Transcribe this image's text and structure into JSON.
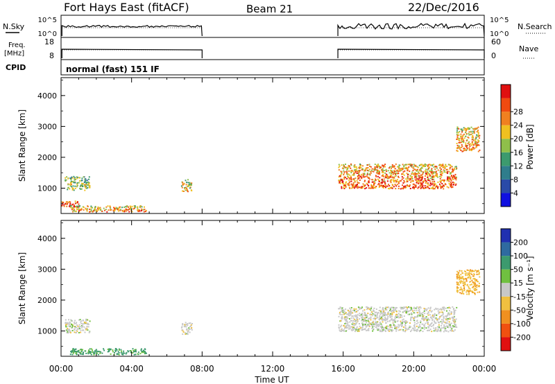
{
  "header": {
    "station": "Fort Hays East (fitACF)",
    "beam": "Beam 21",
    "date": "22/Dec/2016"
  },
  "strips": {
    "nsky": {
      "label": "N.Sky",
      "ticks": [
        "10^5",
        "10^0"
      ]
    },
    "nsearch": {
      "label": "N.Search",
      "ticks": [
        "10^5",
        "10^0"
      ]
    },
    "freq": {
      "label_line1": "Freq.",
      "label_line2": "[MHz]",
      "ticks": [
        "18",
        "8"
      ]
    },
    "nave": {
      "label": "Nave",
      "ticks": [
        "60",
        "0"
      ]
    },
    "cpid": {
      "label": "CPID",
      "value": "normal (fast) 151 IF"
    }
  },
  "colors": {
    "power_scale": [
      "#1010e0",
      "#2a4aa8",
      "#2f7d8c",
      "#3c9a6e",
      "#8fbf4a",
      "#f0c020",
      "#f08020",
      "#f04a10",
      "#e01010"
    ],
    "velocity_scale": [
      "#e01010",
      "#f05010",
      "#f09020",
      "#f0c040",
      "#c8c8c8",
      "#70c040",
      "#3c9a6e",
      "#2f6aa0",
      "#2030b0"
    ]
  },
  "chart_data": [
    {
      "type": "heatmap",
      "panel": "power",
      "xlabel": "",
      "ylabel": "Slant Range [km]",
      "ylim": [
        180,
        4580
      ],
      "y_ticks": [
        "1000",
        "2000",
        "3000",
        "4000"
      ],
      "colorbar": {
        "label": "Power [dB]",
        "ticks": [
          "4",
          "8",
          "12",
          "16",
          "20",
          "24",
          "28"
        ]
      },
      "regions": [
        {
          "t": [
            0.2,
            1.6
          ],
          "range": [
            950,
            1400
          ],
          "value": 12
        },
        {
          "t": [
            0.0,
            1.0
          ],
          "range": [
            400,
            600
          ],
          "value": 24
        },
        {
          "t": [
            0.5,
            4.8
          ],
          "range": [
            250,
            450
          ],
          "value": 18
        },
        {
          "t": [
            6.8,
            7.4
          ],
          "range": [
            900,
            1300
          ],
          "value": 16
        },
        {
          "t": [
            15.7,
            22.4
          ],
          "range": [
            1000,
            1800
          ],
          "value": 20
        },
        {
          "t": [
            22.4,
            23.7
          ],
          "range": [
            2200,
            3000
          ],
          "value": 18
        }
      ]
    },
    {
      "type": "heatmap",
      "panel": "velocity",
      "xlabel": "Time UT",
      "ylabel": "Slant Range [km]",
      "ylim": [
        180,
        4580
      ],
      "y_ticks": [
        "1000",
        "2000",
        "3000",
        "4000"
      ],
      "x_ticks": [
        "00:00",
        "04:00",
        "08:00",
        "12:00",
        "16:00",
        "20:00",
        "00:00"
      ],
      "colorbar": {
        "label": "Velocity [m s⁻¹]",
        "ticks": [
          "-200",
          "-100",
          "-50",
          "-15",
          "15",
          "50",
          "100",
          "200"
        ]
      },
      "regions": [
        {
          "t": [
            0.2,
            1.6
          ],
          "range": [
            950,
            1400
          ],
          "value": 0
        },
        {
          "t": [
            0.5,
            4.8
          ],
          "range": [
            250,
            450
          ],
          "value": 60
        },
        {
          "t": [
            6.8,
            7.4
          ],
          "range": [
            900,
            1300
          ],
          "value": 0
        },
        {
          "t": [
            15.7,
            22.4
          ],
          "range": [
            1000,
            1800
          ],
          "value": 0
        },
        {
          "t": [
            22.4,
            23.7
          ],
          "range": [
            2200,
            3000
          ],
          "value": -40
        }
      ]
    }
  ]
}
